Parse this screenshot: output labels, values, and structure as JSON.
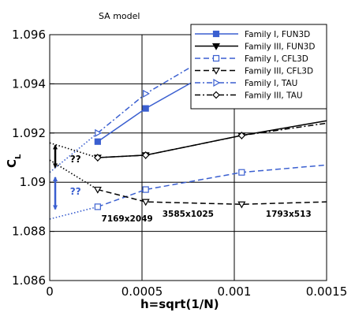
{
  "chart_data": {
    "type": "line",
    "title": "SA model",
    "xlabel": "h=sqrt(1/N)",
    "ylabel_main": "C",
    "ylabel_sub": "L",
    "xlim": [
      0,
      0.0015
    ],
    "ylim": [
      1.086,
      1.096
    ],
    "x_ticks": [
      0,
      0.0005,
      0.001,
      0.0015
    ],
    "x_tick_labels": [
      "0",
      "0.0005",
      "0.001",
      "0.0015"
    ],
    "y_ticks": [
      1.086,
      1.088,
      1.09,
      1.092,
      1.094,
      1.096
    ],
    "y_tick_labels": [
      "1.086",
      "1.088",
      "1.09",
      "1.092",
      "1.094",
      "1.096"
    ],
    "grid": true,
    "legend_position": "top-right",
    "series": [
      {
        "name": "Family I, FUN3D",
        "color": "#3a5fd0",
        "dash": "solid",
        "marker": "square-filled",
        "x": [
          0.00026,
          0.00052,
          0.00104
        ],
        "y": [
          1.09165,
          1.093,
          1.0952
        ]
      },
      {
        "name": "Family III, FUN3D",
        "color": "#000000",
        "dash": "solid",
        "marker": "triangle-down-filled",
        "x": [
          0.00026,
          0.00052,
          0.00104,
          0.0015
        ],
        "y": [
          1.091,
          1.0911,
          1.0919,
          1.0925
        ]
      },
      {
        "name": "Family I, CFL3D",
        "color": "#3a5fd0",
        "dash": "dashed",
        "marker": "square-open",
        "x": [
          0.00026,
          0.00052,
          0.00104,
          0.0015
        ],
        "y": [
          1.089,
          1.0897,
          1.0904,
          1.0907
        ]
      },
      {
        "name": "Family III, CFL3D",
        "color": "#000000",
        "dash": "dashed",
        "marker": "triangle-down-open",
        "x": [
          0.00026,
          0.00052,
          0.00104,
          0.0015
        ],
        "y": [
          1.0897,
          1.0892,
          1.0891,
          1.0892
        ]
      },
      {
        "name": "Family I, TAU",
        "color": "#3a5fd0",
        "dash": "dashdot",
        "marker": "triangle-right-open",
        "x": [
          0.00026,
          0.00052,
          0.00104
        ],
        "y": [
          1.092,
          1.0936,
          1.0959
        ]
      },
      {
        "name": "Family III, TAU",
        "color": "#000000",
        "dash": "dashdot",
        "marker": "diamond-open",
        "x": [
          0.00026,
          0.00052,
          0.00104,
          0.0015
        ],
        "y": [
          1.091,
          1.0911,
          1.0919,
          1.0924
        ]
      }
    ],
    "extrapolations": [
      {
        "color": "#3a5fd0",
        "x": [
          0,
          0.00026
        ],
        "y": [
          1.0885,
          1.089
        ]
      },
      {
        "color": "#3a5fd0",
        "x": [
          0,
          0.00026
        ],
        "y": [
          1.0904,
          1.092
        ]
      },
      {
        "color": "#000000",
        "x": [
          0,
          0.00026
        ],
        "y": [
          1.0916,
          1.091
        ]
      },
      {
        "color": "#000000",
        "x": [
          0,
          0.00026
        ],
        "y": [
          1.0909,
          1.0897
        ]
      }
    ],
    "uncertainty_bars": [
      {
        "color": "#3a5fd0",
        "x": 3e-05,
        "y_low": 1.0889,
        "y_high": 1.0902
      },
      {
        "color": "#000000",
        "x": 3e-05,
        "y_low": 1.0906,
        "y_high": 1.0915
      }
    ],
    "annotations": [
      {
        "text": "??",
        "color": "#000000",
        "x": 0.00011,
        "y": 1.0908
      },
      {
        "text": "??",
        "color": "#3a5fd0",
        "x": 0.00011,
        "y": 1.0895
      },
      {
        "text": "7169x2049",
        "color": "#000000",
        "x": 0.00028,
        "y": 1.0884
      },
      {
        "text": "3585x1025",
        "color": "#000000",
        "x": 0.00061,
        "y": 1.0886
      },
      {
        "text": "1793x513",
        "color": "#000000",
        "x": 0.00117,
        "y": 1.0886
      }
    ]
  }
}
